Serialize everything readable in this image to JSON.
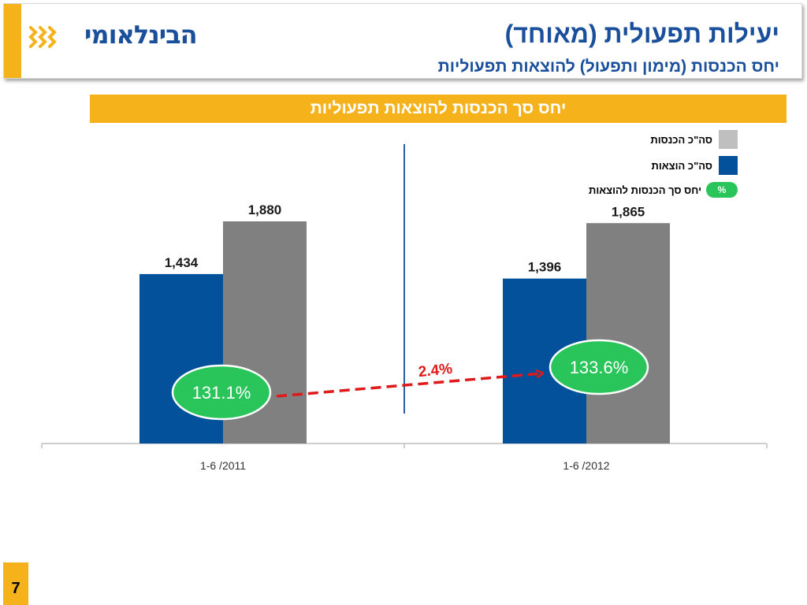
{
  "header": {
    "logo_text": "הבינלאומי",
    "title": "יעילות תפעולית (מאוחד)",
    "subtitle": "יחס הכנסות (מימון ותפעול) להוצאות תפעוליות"
  },
  "banner": {
    "title": "יחס סך הכנסות להוצאות תפעוליות"
  },
  "legend": {
    "income_label": "סה\"כ הכנסות",
    "expenses_label": "סה\"כ הוצאות",
    "ratio_label": "יחס סך הכנסות להוצאות",
    "ratio_symbol": "%"
  },
  "colors": {
    "accent": "#f5b21a",
    "brand_blue": "#1a4f9c",
    "expenses": "#03519b",
    "income": "#808080",
    "income_legend": "#bfbfbf",
    "ratio_badge": "#29c45a",
    "change_arrow": "#e0191b"
  },
  "chart_data": {
    "type": "bar",
    "categories": [
      "1-6 /2011",
      "1-6 /2012"
    ],
    "series": [
      {
        "name": "סה\"כ הוצאות",
        "values": [
          1434,
          1396
        ],
        "labels": [
          "1,434",
          "1,396"
        ]
      },
      {
        "name": "סה\"כ הכנסות",
        "values": [
          1880,
          1865
        ],
        "labels": [
          "1,880",
          "1,865"
        ]
      }
    ],
    "ratios": {
      "name": "יחס סך הכנסות להוצאות",
      "values": [
        131.1,
        133.6
      ],
      "labels": [
        "131.1%",
        "133.6%"
      ]
    },
    "change_label": "2.4%",
    "ylim": [
      0,
      2400
    ],
    "grid": false
  },
  "footer": {
    "page_number": "7"
  }
}
